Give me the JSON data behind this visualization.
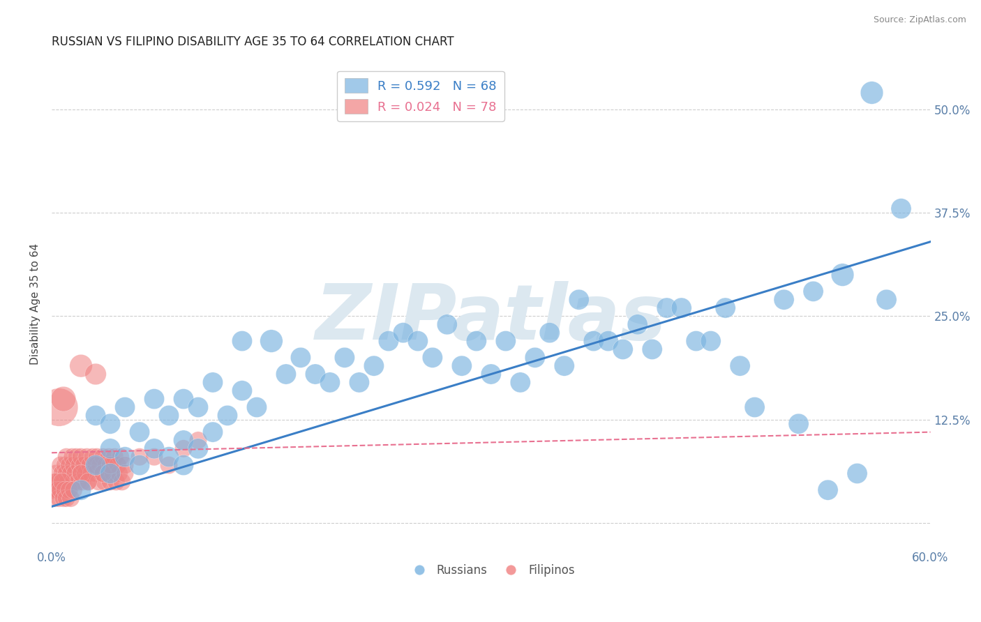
{
  "title": "RUSSIAN VS FILIPINO DISABILITY AGE 35 TO 64 CORRELATION CHART",
  "source": "Source: ZipAtlas.com",
  "ylabel": "Disability Age 35 to 64",
  "xlim": [
    0.0,
    0.6
  ],
  "ylim": [
    -0.03,
    0.56
  ],
  "russian_R": 0.592,
  "russian_N": 68,
  "filipino_R": 0.024,
  "filipino_N": 78,
  "russian_color": "#7ab3e0",
  "filipino_color": "#f08080",
  "russian_line_color": "#3a7ec6",
  "filipino_line_color": "#e87090",
  "watermark": "ZIPatlas",
  "watermark_color": "#dce8f0",
  "russians_x": [
    0.02,
    0.03,
    0.03,
    0.04,
    0.04,
    0.04,
    0.05,
    0.05,
    0.06,
    0.06,
    0.07,
    0.07,
    0.08,
    0.08,
    0.09,
    0.09,
    0.09,
    0.1,
    0.1,
    0.11,
    0.11,
    0.12,
    0.13,
    0.13,
    0.14,
    0.15,
    0.16,
    0.17,
    0.18,
    0.19,
    0.2,
    0.21,
    0.22,
    0.23,
    0.24,
    0.25,
    0.26,
    0.27,
    0.28,
    0.29,
    0.3,
    0.31,
    0.32,
    0.33,
    0.34,
    0.35,
    0.36,
    0.37,
    0.38,
    0.39,
    0.4,
    0.41,
    0.42,
    0.43,
    0.44,
    0.45,
    0.46,
    0.47,
    0.48,
    0.5,
    0.51,
    0.52,
    0.53,
    0.54,
    0.55,
    0.56,
    0.57,
    0.58
  ],
  "russians_y": [
    0.04,
    0.07,
    0.13,
    0.06,
    0.09,
    0.12,
    0.08,
    0.14,
    0.07,
    0.11,
    0.09,
    0.15,
    0.08,
    0.13,
    0.07,
    0.1,
    0.15,
    0.09,
    0.14,
    0.11,
    0.17,
    0.13,
    0.16,
    0.22,
    0.14,
    0.22,
    0.18,
    0.2,
    0.18,
    0.17,
    0.2,
    0.17,
    0.19,
    0.22,
    0.23,
    0.22,
    0.2,
    0.24,
    0.19,
    0.22,
    0.18,
    0.22,
    0.17,
    0.2,
    0.23,
    0.19,
    0.27,
    0.22,
    0.22,
    0.21,
    0.24,
    0.21,
    0.26,
    0.26,
    0.22,
    0.22,
    0.26,
    0.19,
    0.14,
    0.27,
    0.12,
    0.28,
    0.04,
    0.3,
    0.06,
    0.52,
    0.27,
    0.38
  ],
  "russians_size": [
    20,
    20,
    20,
    20,
    20,
    20,
    20,
    20,
    20,
    20,
    20,
    20,
    20,
    20,
    20,
    20,
    20,
    20,
    20,
    20,
    20,
    20,
    20,
    20,
    20,
    25,
    20,
    20,
    20,
    20,
    20,
    20,
    20,
    20,
    20,
    20,
    20,
    20,
    20,
    20,
    20,
    20,
    20,
    20,
    20,
    20,
    20,
    20,
    20,
    20,
    20,
    20,
    20,
    20,
    20,
    20,
    20,
    20,
    20,
    20,
    20,
    20,
    20,
    25,
    20,
    25,
    20,
    20
  ],
  "filipinos_x": [
    0.002,
    0.003,
    0.004,
    0.005,
    0.006,
    0.007,
    0.008,
    0.009,
    0.01,
    0.01,
    0.011,
    0.012,
    0.013,
    0.014,
    0.015,
    0.015,
    0.016,
    0.017,
    0.018,
    0.019,
    0.02,
    0.02,
    0.021,
    0.022,
    0.023,
    0.024,
    0.025,
    0.026,
    0.027,
    0.028,
    0.03,
    0.031,
    0.032,
    0.033,
    0.034,
    0.035,
    0.036,
    0.037,
    0.038,
    0.039,
    0.04,
    0.041,
    0.042,
    0.043,
    0.044,
    0.045,
    0.046,
    0.047,
    0.048,
    0.05,
    0.001,
    0.002,
    0.003,
    0.004,
    0.005,
    0.006,
    0.007,
    0.008,
    0.009,
    0.01,
    0.012,
    0.013,
    0.015,
    0.02,
    0.025,
    0.03,
    0.035,
    0.04,
    0.05,
    0.06,
    0.07,
    0.08,
    0.09,
    0.1,
    0.02,
    0.03,
    0.005,
    0.008
  ],
  "filipinos_y": [
    0.05,
    0.06,
    0.04,
    0.05,
    0.07,
    0.06,
    0.05,
    0.07,
    0.06,
    0.08,
    0.05,
    0.07,
    0.06,
    0.08,
    0.05,
    0.07,
    0.06,
    0.08,
    0.05,
    0.07,
    0.06,
    0.08,
    0.05,
    0.07,
    0.06,
    0.08,
    0.05,
    0.07,
    0.06,
    0.08,
    0.06,
    0.08,
    0.05,
    0.07,
    0.06,
    0.08,
    0.05,
    0.07,
    0.06,
    0.08,
    0.05,
    0.07,
    0.06,
    0.08,
    0.05,
    0.07,
    0.06,
    0.08,
    0.05,
    0.07,
    0.04,
    0.03,
    0.05,
    0.04,
    0.03,
    0.04,
    0.05,
    0.03,
    0.04,
    0.03,
    0.04,
    0.03,
    0.04,
    0.06,
    0.05,
    0.07,
    0.06,
    0.07,
    0.06,
    0.08,
    0.08,
    0.07,
    0.09,
    0.1,
    0.19,
    0.18,
    0.14,
    0.15
  ],
  "filipinos_size": [
    15,
    15,
    15,
    15,
    15,
    15,
    15,
    15,
    15,
    15,
    15,
    15,
    15,
    15,
    15,
    15,
    15,
    15,
    15,
    15,
    15,
    15,
    15,
    15,
    15,
    15,
    15,
    15,
    15,
    15,
    15,
    15,
    15,
    15,
    15,
    15,
    15,
    15,
    15,
    15,
    15,
    15,
    15,
    15,
    15,
    15,
    15,
    15,
    15,
    15,
    15,
    15,
    15,
    15,
    15,
    15,
    15,
    15,
    15,
    15,
    15,
    15,
    15,
    15,
    15,
    15,
    15,
    15,
    15,
    15,
    15,
    15,
    15,
    15,
    25,
    22,
    70,
    30
  ]
}
